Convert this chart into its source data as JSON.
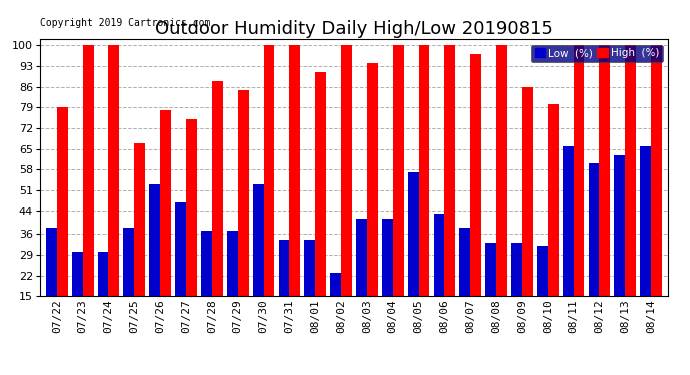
{
  "title": "Outdoor Humidity Daily High/Low 20190815",
  "copyright": "Copyright 2019 Cartronics.com",
  "background_color": "#ffffff",
  "plot_bg_color": "#ffffff",
  "bar_width": 0.42,
  "dates": [
    "07/22",
    "07/23",
    "07/24",
    "07/25",
    "07/26",
    "07/27",
    "07/28",
    "07/29",
    "07/30",
    "07/31",
    "08/01",
    "08/02",
    "08/03",
    "08/04",
    "08/05",
    "08/06",
    "08/07",
    "08/08",
    "08/09",
    "08/10",
    "08/11",
    "08/12",
    "08/13",
    "08/14"
  ],
  "high": [
    79,
    100,
    100,
    67,
    78,
    75,
    88,
    85,
    100,
    100,
    91,
    100,
    94,
    100,
    100,
    100,
    97,
    100,
    86,
    80,
    100,
    100,
    100,
    100
  ],
  "low": [
    38,
    30,
    30,
    38,
    53,
    47,
    37,
    37,
    53,
    34,
    34,
    23,
    41,
    41,
    57,
    43,
    38,
    33,
    33,
    32,
    66,
    60,
    63,
    66
  ],
  "high_color": "#ff0000",
  "low_color": "#0000cc",
  "grid_color": "#b0b0b0",
  "yticks": [
    15,
    22,
    29,
    36,
    44,
    51,
    58,
    65,
    72,
    79,
    86,
    93,
    100
  ],
  "ymin": 15,
  "ymax": 102,
  "title_fontsize": 13,
  "tick_fontsize": 8,
  "legend_low_label": "Low  (%)",
  "legend_high_label": "High  (%)",
  "legend_bg": "#000080"
}
